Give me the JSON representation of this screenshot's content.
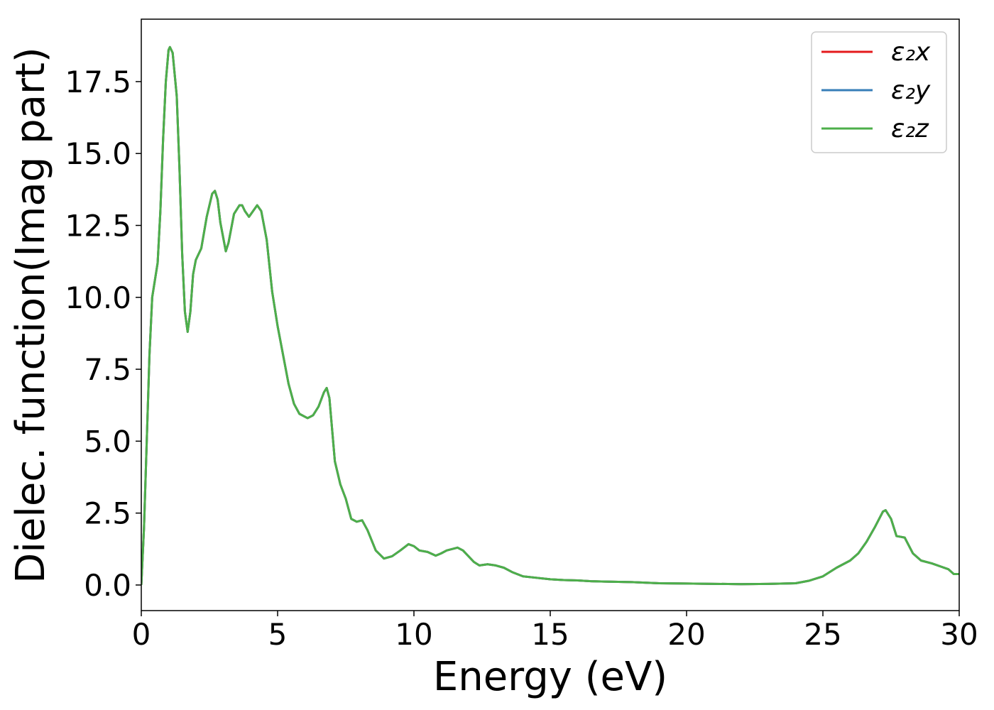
{
  "chart_data": {
    "type": "line",
    "xlabel": "Energy (eV)",
    "ylabel": "Dielec. function(Imag part)",
    "x": [
      0,
      0.1,
      0.2,
      0.3,
      0.4,
      0.5,
      0.6,
      0.7,
      0.8,
      0.9,
      1.0,
      1.05,
      1.15,
      1.3,
      1.4,
      1.5,
      1.6,
      1.7,
      1.8,
      1.9,
      2.0,
      2.2,
      2.4,
      2.6,
      2.7,
      2.8,
      2.9,
      3.1,
      3.2,
      3.4,
      3.6,
      3.7,
      3.8,
      3.95,
      4.1,
      4.25,
      4.4,
      4.6,
      4.8,
      5.0,
      5.2,
      5.4,
      5.6,
      5.8,
      6.0,
      6.1,
      6.3,
      6.5,
      6.7,
      6.8,
      6.9,
      7.0,
      7.1,
      7.3,
      7.5,
      7.7,
      7.9,
      8.1,
      8.3,
      8.6,
      8.9,
      9.2,
      9.5,
      9.8,
      10.0,
      10.2,
      10.5,
      10.8,
      11.0,
      11.2,
      11.6,
      11.8,
      12.2,
      12.4,
      12.7,
      13.0,
      13.3,
      13.6,
      14.0,
      14.5,
      15.0,
      15.5,
      16.0,
      16.5,
      17.0,
      18.0,
      19.0,
      20.0,
      21.0,
      22.0,
      23.0,
      24.0,
      24.5,
      25.0,
      25.5,
      26.0,
      26.3,
      26.6,
      26.9,
      27.2,
      27.3,
      27.5,
      27.7,
      28.0,
      28.3,
      28.6,
      29.0,
      29.3,
      29.6,
      29.8,
      30.0
    ],
    "series": [
      {
        "name": "ε₂x",
        "color": "#e41a1c",
        "values": [
          0,
          2,
          5,
          8,
          10,
          10.6,
          11.2,
          13,
          15.5,
          17.5,
          18.6,
          18.7,
          18.5,
          17,
          14.5,
          11.5,
          9.5,
          8.8,
          9.5,
          10.8,
          11.3,
          11.7,
          12.8,
          13.6,
          13.7,
          13.4,
          12.6,
          11.6,
          11.9,
          12.9,
          13.2,
          13.2,
          13.0,
          12.8,
          13.0,
          13.2,
          13.0,
          12.0,
          10.2,
          9.0,
          8.0,
          7.0,
          6.3,
          5.95,
          5.85,
          5.8,
          5.9,
          6.2,
          6.7,
          6.85,
          6.5,
          5.4,
          4.3,
          3.5,
          3.0,
          2.3,
          2.2,
          2.25,
          1.9,
          1.2,
          0.92,
          1.0,
          1.2,
          1.42,
          1.35,
          1.2,
          1.15,
          1.02,
          1.1,
          1.2,
          1.3,
          1.2,
          0.8,
          0.68,
          0.72,
          0.68,
          0.6,
          0.45,
          0.3,
          0.25,
          0.2,
          0.17,
          0.16,
          0.13,
          0.12,
          0.1,
          0.06,
          0.05,
          0.04,
          0.03,
          0.04,
          0.06,
          0.15,
          0.3,
          0.6,
          0.85,
          1.1,
          1.5,
          2.0,
          2.55,
          2.6,
          2.3,
          1.7,
          1.65,
          1.1,
          0.85,
          0.75,
          0.65,
          0.55,
          0.38,
          0.38
        ]
      },
      {
        "name": "ε₂y",
        "color": "#377eb8",
        "values": [
          0,
          2,
          5,
          8,
          10,
          10.6,
          11.2,
          13,
          15.5,
          17.5,
          18.6,
          18.7,
          18.5,
          17,
          14.5,
          11.5,
          9.5,
          8.8,
          9.5,
          10.8,
          11.3,
          11.7,
          12.8,
          13.6,
          13.7,
          13.4,
          12.6,
          11.6,
          11.9,
          12.9,
          13.2,
          13.2,
          13.0,
          12.8,
          13.0,
          13.2,
          13.0,
          12.0,
          10.2,
          9.0,
          8.0,
          7.0,
          6.3,
          5.95,
          5.85,
          5.8,
          5.9,
          6.2,
          6.7,
          6.85,
          6.5,
          5.4,
          4.3,
          3.5,
          3.0,
          2.3,
          2.2,
          2.25,
          1.9,
          1.2,
          0.92,
          1.0,
          1.2,
          1.42,
          1.35,
          1.2,
          1.15,
          1.02,
          1.1,
          1.2,
          1.3,
          1.2,
          0.8,
          0.68,
          0.72,
          0.68,
          0.6,
          0.45,
          0.3,
          0.25,
          0.2,
          0.17,
          0.16,
          0.13,
          0.12,
          0.1,
          0.06,
          0.05,
          0.04,
          0.03,
          0.04,
          0.06,
          0.15,
          0.3,
          0.6,
          0.85,
          1.1,
          1.5,
          2.0,
          2.55,
          2.6,
          2.3,
          1.7,
          1.65,
          1.1,
          0.85,
          0.75,
          0.65,
          0.55,
          0.38,
          0.38
        ]
      },
      {
        "name": "ε₂z",
        "color": "#4daf4a",
        "values": [
          0,
          2,
          5,
          8,
          10,
          10.6,
          11.2,
          13,
          15.5,
          17.5,
          18.6,
          18.7,
          18.5,
          17,
          14.5,
          11.5,
          9.5,
          8.8,
          9.5,
          10.8,
          11.3,
          11.7,
          12.8,
          13.6,
          13.7,
          13.4,
          12.6,
          11.6,
          11.9,
          12.9,
          13.2,
          13.2,
          13.0,
          12.8,
          13.0,
          13.2,
          13.0,
          12.0,
          10.2,
          9.0,
          8.0,
          7.0,
          6.3,
          5.95,
          5.85,
          5.8,
          5.9,
          6.2,
          6.7,
          6.85,
          6.5,
          5.4,
          4.3,
          3.5,
          3.0,
          2.3,
          2.2,
          2.25,
          1.9,
          1.2,
          0.92,
          1.0,
          1.2,
          1.42,
          1.35,
          1.2,
          1.15,
          1.02,
          1.1,
          1.2,
          1.3,
          1.2,
          0.8,
          0.68,
          0.72,
          0.68,
          0.6,
          0.45,
          0.3,
          0.25,
          0.2,
          0.17,
          0.16,
          0.13,
          0.12,
          0.1,
          0.06,
          0.05,
          0.04,
          0.03,
          0.04,
          0.06,
          0.15,
          0.3,
          0.6,
          0.85,
          1.1,
          1.5,
          2.0,
          2.55,
          2.6,
          2.3,
          1.7,
          1.65,
          1.1,
          0.85,
          0.75,
          0.65,
          0.55,
          0.38,
          0.38
        ]
      }
    ],
    "xlim": [
      0,
      30
    ],
    "xticks": [
      0,
      5,
      10,
      15,
      20,
      25,
      30
    ],
    "ylim": [
      -0.89,
      19.67
    ],
    "yticks": [
      {
        "value": 0,
        "label": "0.0"
      },
      2.5,
      {
        "value": 5,
        "label": "5.0"
      },
      7.5,
      {
        "value": 10,
        "label": "10.0"
      },
      12.5,
      {
        "value": 15,
        "label": "15.0"
      },
      17.5
    ],
    "legend": "upper right",
    "grid": false
  }
}
